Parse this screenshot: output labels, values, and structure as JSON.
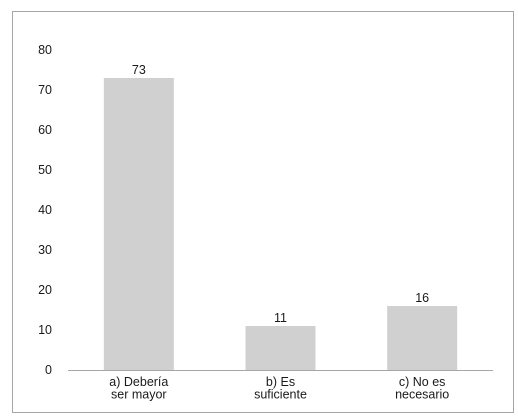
{
  "chart_data": {
    "type": "bar",
    "categories": [
      [
        "a) Debería",
        "ser mayor"
      ],
      [
        "b) Es",
        "suficiente"
      ],
      [
        "c) No es",
        "necesario"
      ]
    ],
    "values": [
      73,
      11,
      16
    ],
    "data_labels": [
      "73",
      "11",
      "16"
    ],
    "ylim": [
      0,
      80
    ],
    "yticks": [
      "0",
      "10",
      "20",
      "30",
      "40",
      "50",
      "60",
      "70",
      "80"
    ],
    "grid": false,
    "bar_color": "#d0d0d0",
    "axis_color": "#a6a6a6",
    "title": "",
    "xlabel": "",
    "ylabel": ""
  }
}
